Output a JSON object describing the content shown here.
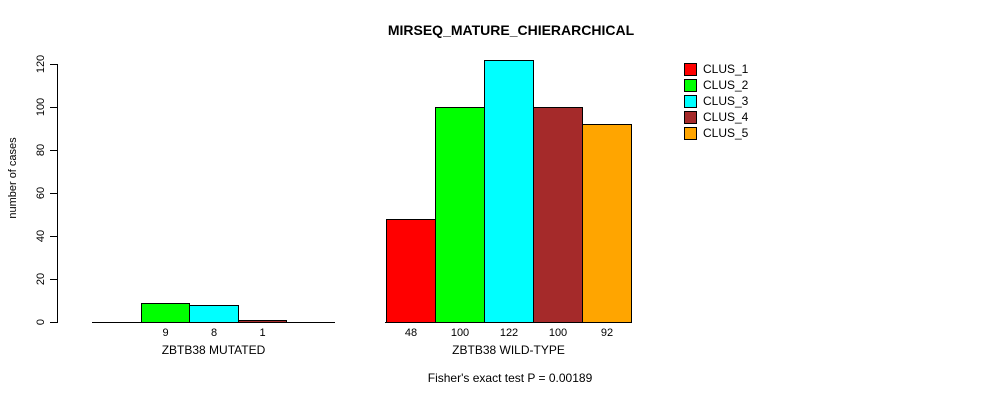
{
  "chart_data": {
    "type": "bar",
    "title": "MIRSEQ_MATURE_CHIERARCHICAL",
    "ylabel": "number of cases",
    "xlabel": "",
    "ylim": [
      0,
      120
    ],
    "yticks": [
      0,
      20,
      40,
      60,
      80,
      100,
      120
    ],
    "grid": false,
    "legend_position": "right",
    "categories": [
      "ZBTB38 MUTATED",
      "ZBTB38 WILD-TYPE"
    ],
    "series": [
      {
        "name": "CLUS_1",
        "color": "#FF0000",
        "values": [
          0,
          48
        ]
      },
      {
        "name": "CLUS_2",
        "color": "#00FF00",
        "values": [
          9,
          100
        ]
      },
      {
        "name": "CLUS_3",
        "color": "#00FFFF",
        "values": [
          8,
          122
        ]
      },
      {
        "name": "CLUS_4",
        "color": "#A52A2A",
        "values": [
          1,
          100
        ]
      },
      {
        "name": "CLUS_5",
        "color": "#FFA500",
        "values": [
          0,
          92
        ]
      }
    ],
    "bar_value_labels": {
      "group_1": [
        "9",
        "8",
        "1"
      ],
      "group_2": [
        "48",
        "100",
        "122",
        "100",
        "92"
      ]
    },
    "footnote": "Fisher's exact test P = 0.00189",
    "colors": {
      "axis": "#000000",
      "background": "#FFFFFF",
      "text": "#000000"
    }
  }
}
